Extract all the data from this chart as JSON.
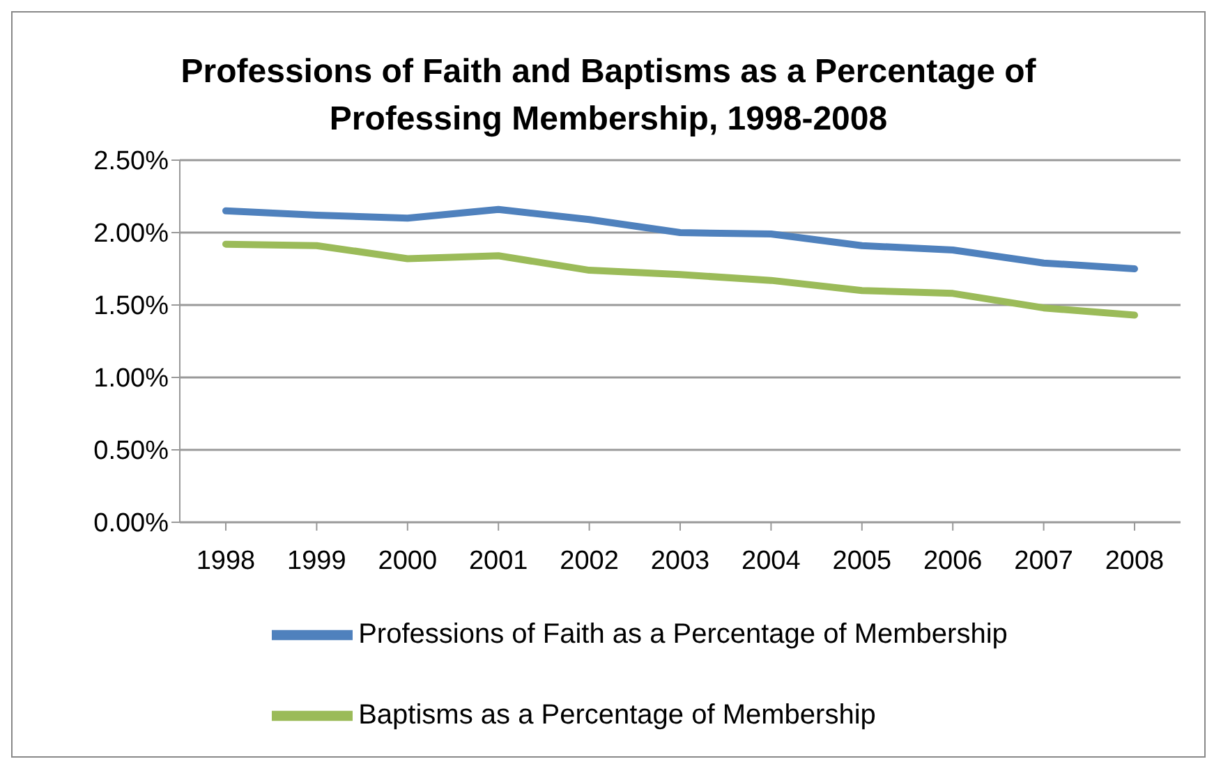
{
  "chart_data": {
    "type": "line",
    "title": "Professions of Faith and Baptisms as a Percentage of Professing Membership, 1998-2008",
    "categories": [
      "1998",
      "1999",
      "2000",
      "2001",
      "2002",
      "2003",
      "2004",
      "2005",
      "2006",
      "2007",
      "2008"
    ],
    "series": [
      {
        "name": "Professions of Faith as a Percentage of Membership",
        "color": "#4f81bd",
        "values": [
          2.15,
          2.12,
          2.1,
          2.16,
          2.09,
          2.0,
          1.99,
          1.91,
          1.88,
          1.79,
          1.75
        ]
      },
      {
        "name": "Baptisms as a Percentage of Membership",
        "color": "#9bbb59",
        "values": [
          1.92,
          1.91,
          1.82,
          1.84,
          1.74,
          1.71,
          1.67,
          1.6,
          1.58,
          1.48,
          1.43
        ]
      }
    ],
    "ylim": [
      0,
      2.5
    ],
    "yticks": [
      {
        "value": 0,
        "label": "0.00%"
      },
      {
        "value": 0.5,
        "label": "0.50%"
      },
      {
        "value": 1,
        "label": "1.00%"
      },
      {
        "value": 1.5,
        "label": "1.50%"
      },
      {
        "value": 2,
        "label": "2.00%"
      },
      {
        "value": 2.5,
        "label": "2.50%"
      }
    ],
    "grid": "y",
    "legend": "bottom",
    "marker": "none",
    "line_style": "solid"
  }
}
